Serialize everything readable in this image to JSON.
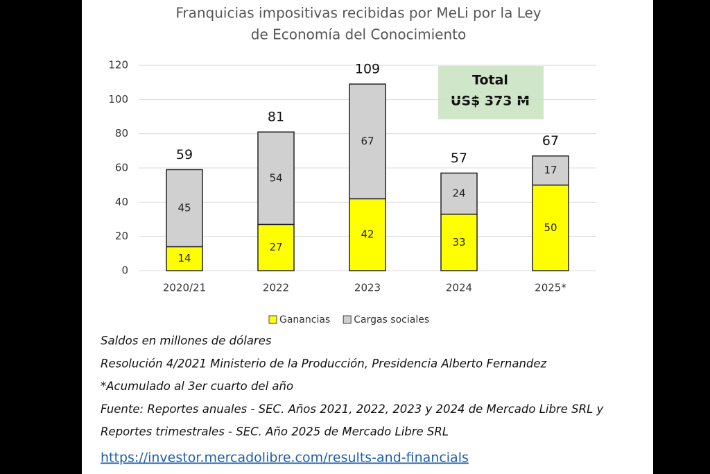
{
  "chart_data": {
    "type": "stacked_bar",
    "title": [
      "Franquicias impositivas recibidas por MeLi por la Ley",
      "de Economía del Conocimiento"
    ],
    "categories": [
      "2020/21",
      "2022",
      "2023",
      "2024",
      "2025*"
    ],
    "series": [
      {
        "name": "Ganancias",
        "color": "#ffff00",
        "values": [
          14,
          27,
          42,
          33,
          50
        ]
      },
      {
        "name": "Cargas sociales",
        "color": "#d0d0d0",
        "values": [
          45,
          54,
          67,
          24,
          17
        ]
      }
    ],
    "total_labels": [
      59,
      81,
      109,
      57,
      67
    ],
    "annotation": [
      "Total",
      "US$ 373 M"
    ],
    "ylim": [
      0,
      120
    ],
    "yticks": [
      0,
      20,
      40,
      60,
      80,
      100,
      120
    ],
    "grid": true
  },
  "notes": [
    "Saldos en millones de dólares",
    "Resolución 4/2021 Ministerio de la Producción, Presidencia Alberto Fernandez",
    "*Acumulado al 3er cuarto del año",
    "Fuente: Reportes anuales - SEC. Años 2021, 2022, 2023 y 2024 de Mercado Libre SRL y",
    "Reportes trimestrales - SEC. Año 2025 de Mercado Libre SRL"
  ],
  "link": "https://investor.mercadolibre.com/results-and-financials"
}
